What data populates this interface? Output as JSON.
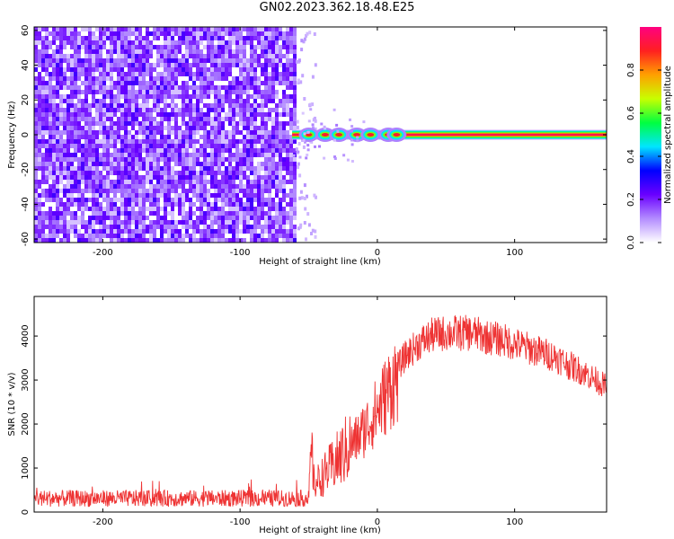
{
  "title": "GN02.2023.362.18.48.E25",
  "chart_data": [
    {
      "type": "heatmap",
      "xlabel": "Height of straight line (km)",
      "ylabel": "Frequency (Hz)",
      "xlim": [
        -250,
        167
      ],
      "ylim": [
        -62,
        62
      ],
      "xticks": [
        -200,
        -100,
        0,
        100
      ],
      "yticks": [
        -60,
        -40,
        -20,
        0,
        20,
        40,
        60
      ],
      "noise_region": {
        "x_from": -250,
        "x_to": -60,
        "amplitude": [
          0.05,
          0.25
        ]
      },
      "signal_line": {
        "x_from": -62,
        "x_to": 167,
        "frequency": 0,
        "peak_amplitude": 1.0,
        "blobs": [
          -50,
          -38,
          -28,
          -15,
          -5,
          8,
          14
        ]
      },
      "colorbar": {
        "label": "Normalized spectral amplitude",
        "ticks": [
          "0.0",
          "0.2",
          "0.4",
          "0.6",
          "0.8"
        ],
        "range": [
          0,
          1
        ],
        "colors": [
          "#ffffff",
          "#b38cff",
          "#6a00ff",
          "#0000ff",
          "#00e5ff",
          "#00ff40",
          "#c8ff00",
          "#ffa000",
          "#ff2020",
          "#ff0080"
        ]
      }
    },
    {
      "type": "line",
      "xlabel": "Height of straight line (km)",
      "ylabel": "SNR (10 * v/v)",
      "xlim": [
        -250,
        167
      ],
      "ylim": [
        0,
        4900
      ],
      "xticks": [
        -200,
        -100,
        0,
        100
      ],
      "yticks": [
        0,
        1000,
        2000,
        3000,
        4000
      ],
      "series": [
        {
          "color": "#ee3333",
          "x": [
            -250,
            -200,
            -150,
            -100,
            -60,
            -50,
            -48,
            -46,
            -40,
            -30,
            -20,
            -10,
            0,
            10,
            20,
            30,
            40,
            50,
            60,
            70,
            80,
            90,
            100,
            110,
            120,
            130,
            140,
            150,
            160,
            167
          ],
          "y": [
            300,
            300,
            300,
            300,
            300,
            300,
            1500,
            650,
            850,
            1200,
            1600,
            2000,
            2500,
            3100,
            3600,
            3900,
            4100,
            4150,
            4150,
            4150,
            4050,
            4000,
            3900,
            3800,
            3700,
            3600,
            3400,
            3250,
            3050,
            2900
          ]
        }
      ]
    }
  ]
}
